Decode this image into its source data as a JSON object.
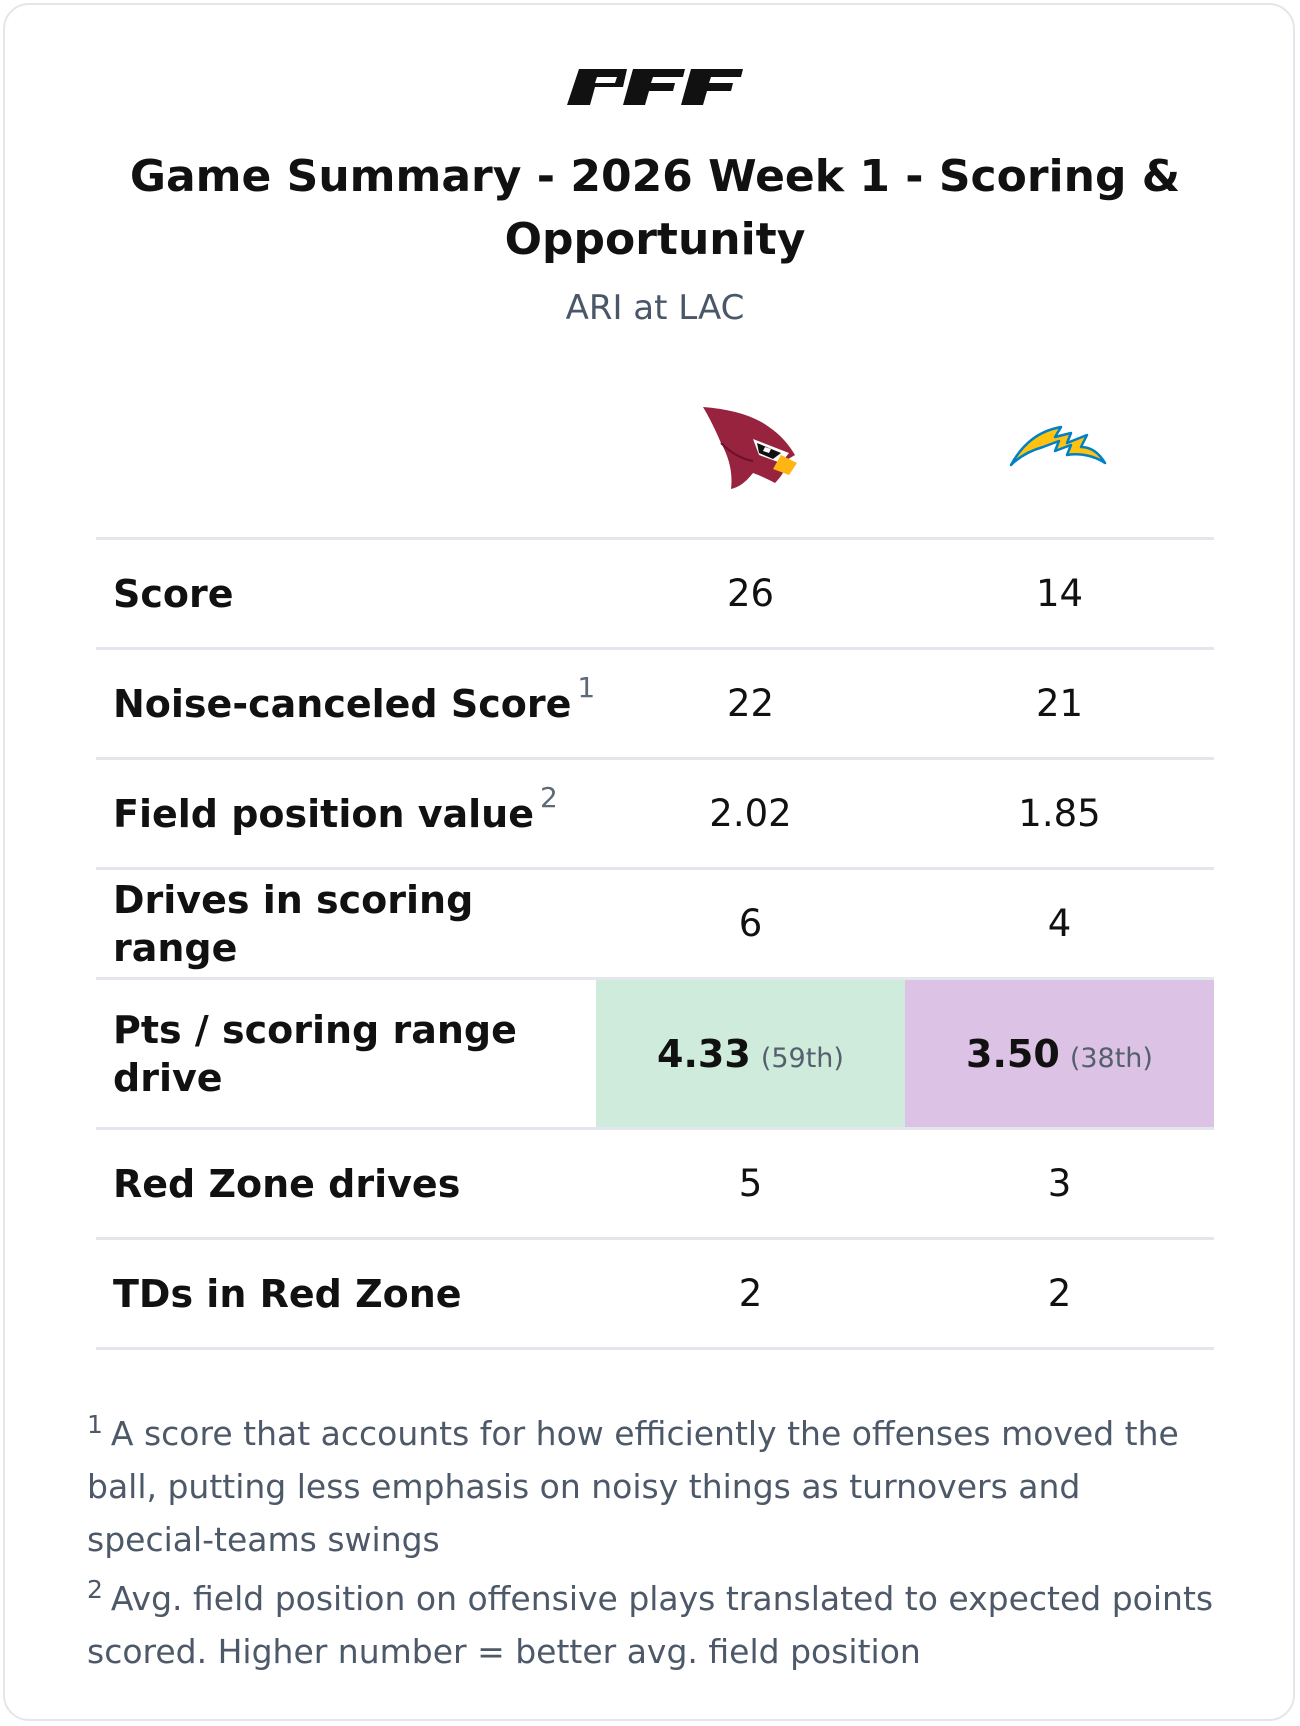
{
  "brand": {
    "name": "PFF"
  },
  "header": {
    "title": "Game Summary - 2026 Week 1 - Scoring & Opportunity",
    "subtitle": "ARI at LAC"
  },
  "teams": {
    "away": {
      "abbr": "ARI",
      "logo_icon": "cardinals-logo-icon",
      "colors": {
        "primary": "#97233F",
        "beak": "#FFB612"
      }
    },
    "home": {
      "abbr": "LAC",
      "logo_icon": "chargers-bolt-logo-icon",
      "colors": {
        "primary": "#FFC20E",
        "outline": "#0080C6"
      }
    }
  },
  "rows": [
    {
      "label": "Score",
      "ari": "26",
      "lac": "14"
    },
    {
      "label": "Noise-canceled Score",
      "footnote": "1",
      "ari": "22",
      "lac": "21"
    },
    {
      "label": "Field position value",
      "footnote": "2",
      "ari": "2.02",
      "lac": "1.85"
    },
    {
      "label": "Drives in scoring range",
      "ari": "6",
      "lac": "4"
    },
    {
      "label": "Pts / scoring range drive",
      "ari": "4.33",
      "ari_rank": "(59th)",
      "lac": "3.50",
      "lac_rank": "(38th)",
      "highlight_colors": {
        "ari": "#cfebdb",
        "lac": "#dcc3e6"
      }
    },
    {
      "label": "Red Zone drives",
      "ari": "5",
      "lac": "3"
    },
    {
      "label": "TDs in Red Zone",
      "ari": "2",
      "lac": "2"
    }
  ],
  "footnotes": [
    {
      "mark": "1",
      "text": "A score that accounts for how efficiently the offenses moved the ball, putting less emphasis on noisy things as turnovers and special-teams swings"
    },
    {
      "mark": "2",
      "text": "Avg. field position on offensive plays translated to expected points scored. Higher number = better avg. field position"
    }
  ]
}
